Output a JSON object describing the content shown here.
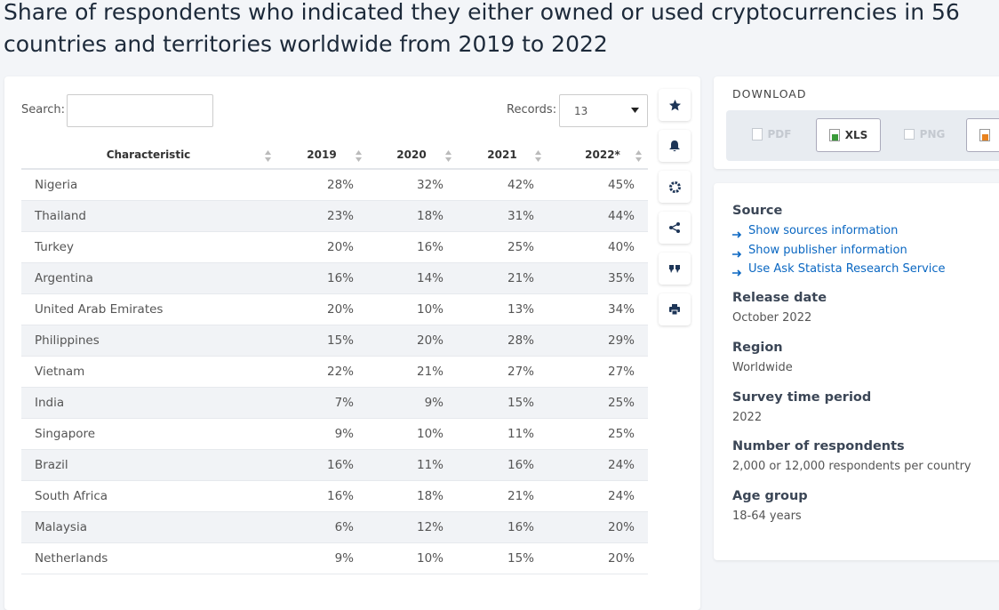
{
  "title": "Share of respondents who indicated they either owned or used cryptocurrencies in 56 countries and territories worldwide from 2019 to 2022",
  "search": {
    "label": "Search:"
  },
  "records": {
    "label": "Records:",
    "value": "13"
  },
  "table": {
    "columns": [
      "Characteristic",
      "2019",
      "2020",
      "2021",
      "2022*"
    ],
    "rows": [
      [
        "Nigeria",
        "28%",
        "32%",
        "42%",
        "45%"
      ],
      [
        "Thailand",
        "23%",
        "18%",
        "31%",
        "44%"
      ],
      [
        "Turkey",
        "20%",
        "16%",
        "25%",
        "40%"
      ],
      [
        "Argentina",
        "16%",
        "14%",
        "21%",
        "35%"
      ],
      [
        "United Arab Emirates",
        "20%",
        "10%",
        "13%",
        "34%"
      ],
      [
        "Philippines",
        "15%",
        "20%",
        "28%",
        "29%"
      ],
      [
        "Vietnam",
        "22%",
        "21%",
        "27%",
        "27%"
      ],
      [
        "India",
        "7%",
        "9%",
        "15%",
        "25%"
      ],
      [
        "Singapore",
        "9%",
        "10%",
        "11%",
        "25%"
      ],
      [
        "Brazil",
        "16%",
        "11%",
        "16%",
        "24%"
      ],
      [
        "South Africa",
        "16%",
        "18%",
        "21%",
        "24%"
      ],
      [
        "Malaysia",
        "6%",
        "12%",
        "16%",
        "20%"
      ],
      [
        "Netherlands",
        "9%",
        "10%",
        "15%",
        "20%"
      ]
    ]
  },
  "download": {
    "title": "DOWNLOAD",
    "buttons": [
      "PDF",
      "XLS",
      "PNG"
    ]
  },
  "details": {
    "source": {
      "label": "Source",
      "links": [
        "Show sources information",
        "Show publisher information",
        "Use Ask Statista Research Service"
      ]
    },
    "items": [
      {
        "label": "Release date",
        "value": "October 2022"
      },
      {
        "label": "Region",
        "value": "Worldwide"
      },
      {
        "label": "Survey time period",
        "value": "2022"
      },
      {
        "label": "Number of respondents",
        "value": "2,000 or 12,000 respondents per country"
      },
      {
        "label": "Age group",
        "value": "18-64 years"
      }
    ]
  }
}
